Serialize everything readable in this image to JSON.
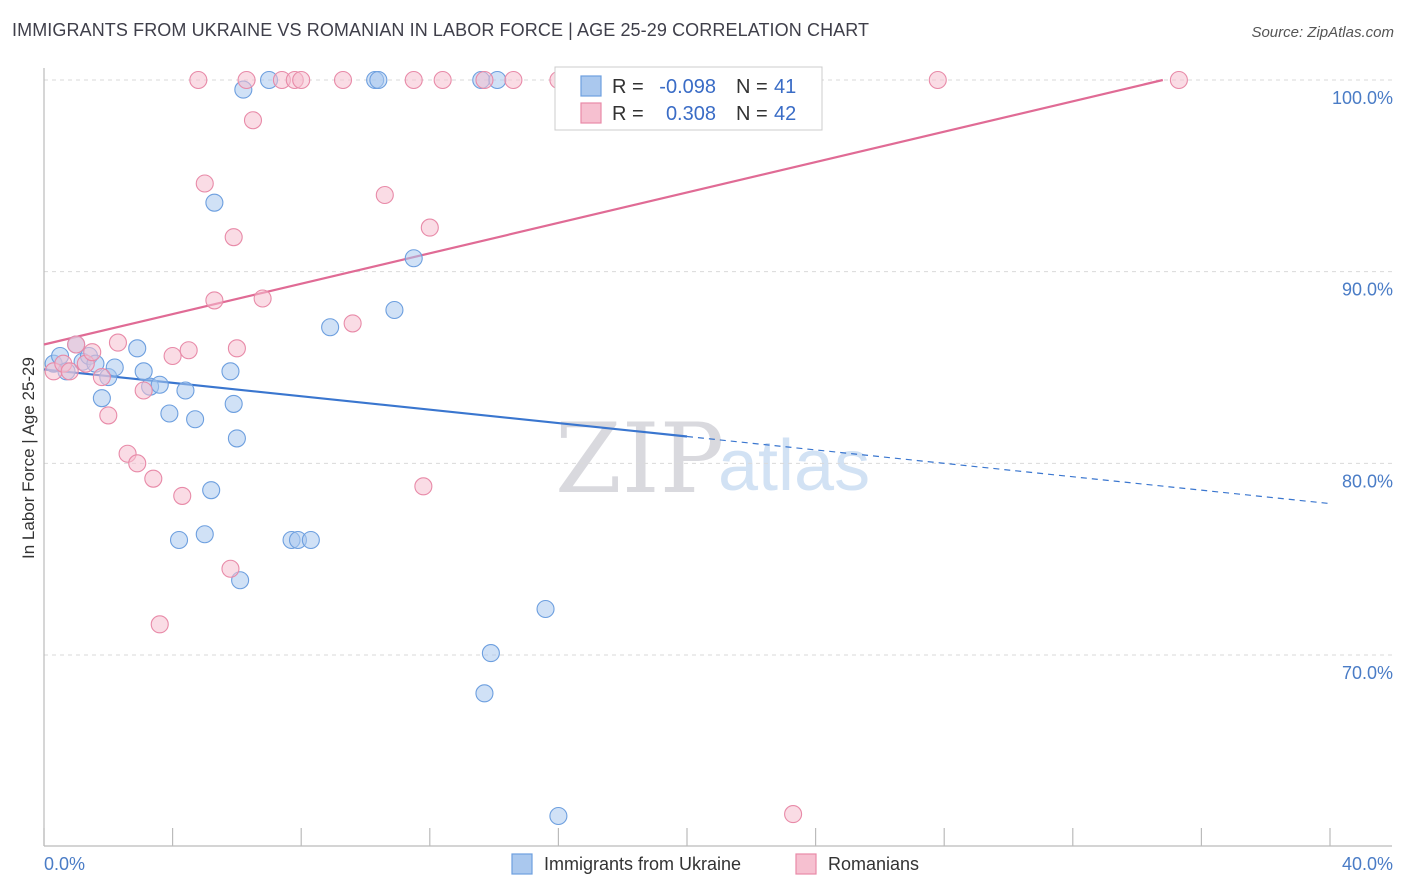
{
  "chart_data": {
    "type": "scatter",
    "title": "IMMIGRANTS FROM UKRAINE VS ROMANIAN IN LABOR FORCE | AGE 25-29 CORRELATION CHART",
    "source": "Source: ZipAtlas.com",
    "xlabel": "",
    "ylabel": "In Labor Force | Age 25-29",
    "xlim": [
      0,
      40
    ],
    "ylim": [
      60,
      101
    ],
    "x_tick_labels": [
      "0.0%",
      "40.0%"
    ],
    "y_tick_labels": [
      {
        "value": 100,
        "label": "100.0%"
      },
      {
        "value": 90,
        "label": "90.0%"
      },
      {
        "value": 80,
        "label": "80.0%"
      },
      {
        "value": 70,
        "label": "70.0%"
      }
    ],
    "watermark": {
      "zip": "ZIP",
      "atlas": "atlas"
    },
    "legend_stats": [
      {
        "r_label": "R =",
        "r_value": "-0.098",
        "n_label": "N =",
        "n_value": "41"
      },
      {
        "r_label": "R =",
        "r_value": "0.308",
        "n_label": "N =",
        "n_value": "42"
      }
    ],
    "series": [
      {
        "name": "Immigrants from Ukraine",
        "color": "#6d9fdf",
        "fill": "#aac8ee",
        "trend": {
          "x0": 0,
          "y0": 84.9,
          "x1": 20,
          "y1": 81.4,
          "x_end": 40,
          "y_end": 77.9
        },
        "points": [
          [
            0.3,
            85.2
          ],
          [
            0.5,
            85.6
          ],
          [
            0.7,
            84.8
          ],
          [
            1.0,
            86.2
          ],
          [
            1.2,
            85.3
          ],
          [
            1.4,
            85.6
          ],
          [
            1.6,
            85.2
          ],
          [
            1.8,
            83.4
          ],
          [
            2.0,
            84.5
          ],
          [
            2.2,
            85.0
          ],
          [
            2.9,
            86.0
          ],
          [
            3.1,
            84.8
          ],
          [
            3.3,
            84.0
          ],
          [
            3.6,
            84.1
          ],
          [
            3.9,
            82.6
          ],
          [
            4.4,
            83.8
          ],
          [
            4.7,
            82.3
          ],
          [
            5.2,
            78.6
          ],
          [
            5.0,
            76.3
          ],
          [
            4.2,
            76.0
          ],
          [
            5.3,
            93.6
          ],
          [
            5.8,
            84.8
          ],
          [
            5.9,
            83.1
          ],
          [
            6.0,
            81.3
          ],
          [
            6.1,
            73.9
          ],
          [
            6.2,
            99.5
          ],
          [
            7.0,
            100.0
          ],
          [
            7.7,
            76.0
          ],
          [
            7.9,
            76.0
          ],
          [
            8.3,
            76.0
          ],
          [
            8.9,
            87.1
          ],
          [
            10.3,
            100.0
          ],
          [
            10.4,
            100.0
          ],
          [
            10.9,
            88.0
          ],
          [
            11.5,
            90.7
          ],
          [
            13.6,
            100.0
          ],
          [
            14.1,
            100.0
          ],
          [
            13.7,
            68.0
          ],
          [
            13.9,
            70.1
          ],
          [
            15.6,
            72.4
          ],
          [
            16.0,
            61.6
          ]
        ]
      },
      {
        "name": "Romanians",
        "color": "#e88aa8",
        "fill": "#f6c0d0",
        "trend": {
          "x0": 0,
          "y0": 86.2,
          "x1": 34.8,
          "y1": 100.0
        },
        "points": [
          [
            0.3,
            84.8
          ],
          [
            0.6,
            85.2
          ],
          [
            0.8,
            84.8
          ],
          [
            1.0,
            86.2
          ],
          [
            1.3,
            85.2
          ],
          [
            1.5,
            85.8
          ],
          [
            1.8,
            84.5
          ],
          [
            2.0,
            82.5
          ],
          [
            2.3,
            86.3
          ],
          [
            2.6,
            80.5
          ],
          [
            2.9,
            80.0
          ],
          [
            3.1,
            83.8
          ],
          [
            3.4,
            79.2
          ],
          [
            3.6,
            71.6
          ],
          [
            4.0,
            85.6
          ],
          [
            4.3,
            78.3
          ],
          [
            4.5,
            85.9
          ],
          [
            4.8,
            100.0
          ],
          [
            5.0,
            94.6
          ],
          [
            5.3,
            88.5
          ],
          [
            5.8,
            74.5
          ],
          [
            5.9,
            91.8
          ],
          [
            6.0,
            86.0
          ],
          [
            6.3,
            100.0
          ],
          [
            6.5,
            97.9
          ],
          [
            6.8,
            88.6
          ],
          [
            7.4,
            100.0
          ],
          [
            7.8,
            100.0
          ],
          [
            8.0,
            100.0
          ],
          [
            9.3,
            100.0
          ],
          [
            9.6,
            87.3
          ],
          [
            10.6,
            94.0
          ],
          [
            11.5,
            100.0
          ],
          [
            11.8,
            78.8
          ],
          [
            12.0,
            92.3
          ],
          [
            12.4,
            100.0
          ],
          [
            13.7,
            100.0
          ],
          [
            14.6,
            100.0
          ],
          [
            16.0,
            100.0
          ],
          [
            27.8,
            100.0
          ],
          [
            35.3,
            100.0
          ],
          [
            23.3,
            61.7
          ]
        ]
      }
    ]
  }
}
